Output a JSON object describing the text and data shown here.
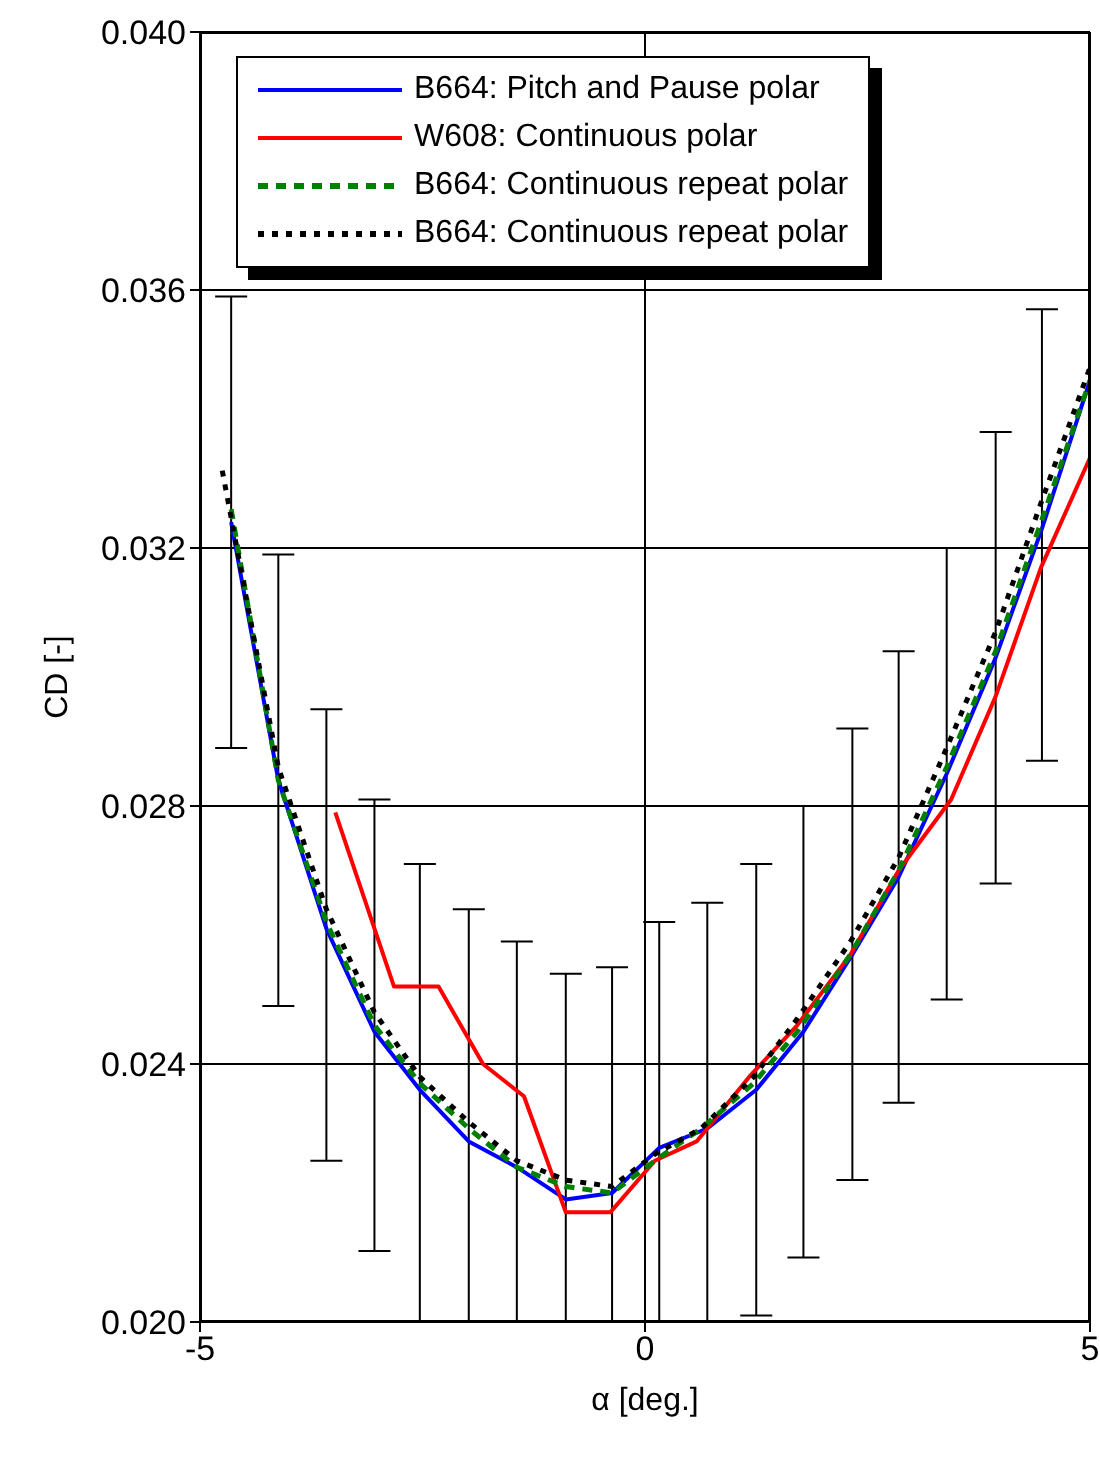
{
  "chart_data": {
    "type": "line",
    "xlabel": "α [deg.]",
    "ylabel": "CD [-]",
    "xlim": [
      -5,
      5
    ],
    "xticks": [
      -5,
      0,
      5
    ],
    "ylim": [
      0.02,
      0.04
    ],
    "yticks": [
      {
        "value": 0.02,
        "label": "0.020"
      },
      {
        "value": 0.024,
        "label": "0.024"
      },
      {
        "value": 0.028,
        "label": "0.028"
      },
      {
        "value": 0.032,
        "label": "0.032"
      },
      {
        "value": 0.036,
        "label": "0.036"
      },
      {
        "value": 0.04,
        "label": "0.040"
      }
    ],
    "grid": true,
    "legend": "top",
    "marker": "none",
    "series": [
      {
        "name": "B664:  Pitch and Pause polar",
        "color": "#0000ff",
        "line_style": "solid",
        "x": [
          -4.65,
          -4.12,
          -3.58,
          -3.04,
          -2.53,
          -1.98,
          -1.44,
          -0.89,
          -0.37,
          0.16,
          0.7,
          1.25,
          1.78,
          2.33,
          2.85,
          3.39,
          3.94,
          4.46,
          5.0
        ],
        "values": [
          0.0324,
          0.0284,
          0.0261,
          0.0245,
          0.0236,
          0.0228,
          0.0224,
          0.0219,
          0.022,
          0.0227,
          0.023,
          0.0236,
          0.0245,
          0.0257,
          0.0269,
          0.0285,
          0.0303,
          0.0323,
          0.0346
        ],
        "errors": [
          [
            0.0289,
            0.0359
          ],
          [
            0.0249,
            0.0319
          ],
          [
            0.0225,
            0.0295
          ],
          [
            0.0211,
            0.0281
          ],
          [
            0.02,
            0.0271
          ],
          [
            0.02,
            0.0264
          ],
          [
            0.02,
            0.0259
          ],
          [
            0.02,
            0.0254
          ],
          [
            0.02,
            0.0255
          ],
          [
            0.02,
            0.0262
          ],
          [
            0.02,
            0.0265
          ],
          [
            0.0201,
            0.0271
          ],
          [
            0.021,
            0.028
          ],
          [
            0.0222,
            0.0292
          ],
          [
            0.0234,
            0.0304
          ],
          [
            0.025,
            0.032
          ],
          [
            0.0268,
            0.0338
          ],
          [
            0.0287,
            0.0357
          ],
          null
        ]
      },
      {
        "name": "W608: Continuous polar",
        "color": "#ff0000",
        "line_style": "solid",
        "x": [
          -3.48,
          -2.82,
          -2.32,
          -1.82,
          -1.36,
          -0.89,
          -0.39,
          0.11,
          0.58,
          1.17,
          1.71,
          2.31,
          2.85,
          3.44,
          3.94,
          4.45,
          5.0
        ],
        "values": [
          0.0279,
          0.0252,
          0.0252,
          0.024,
          0.0235,
          0.0217,
          0.0217,
          0.0225,
          0.0228,
          0.0238,
          0.0246,
          0.0257,
          0.027,
          0.0281,
          0.0297,
          0.0317,
          0.0334
        ]
      },
      {
        "name": "B664:  Continuous repeat polar",
        "color": "#008000",
        "line_style": "dashed",
        "x": [
          -4.65,
          -4.12,
          -3.58,
          -3.04,
          -2.53,
          -1.98,
          -1.44,
          -0.89,
          -0.37,
          0.11,
          0.63,
          1.22,
          1.71,
          2.31,
          2.85,
          3.39,
          3.94,
          4.45,
          5.0
        ],
        "values": [
          0.0326,
          0.0284,
          0.0262,
          0.0246,
          0.0237,
          0.023,
          0.0224,
          0.0221,
          0.022,
          0.0225,
          0.023,
          0.0237,
          0.0245,
          0.0257,
          0.027,
          0.0286,
          0.0304,
          0.0324,
          0.0346
        ]
      },
      {
        "name": "B664:  Continuous repeat polar",
        "color": "#000000",
        "line_style": "dotted",
        "x": [
          -4.75,
          -4.12,
          -3.58,
          -3.04,
          -2.53,
          -1.98,
          -1.44,
          -0.89,
          -0.37,
          0.11,
          0.63,
          1.22,
          1.71,
          2.31,
          2.85,
          3.39,
          3.94,
          4.45,
          5.0
        ],
        "values": [
          0.0332,
          0.0286,
          0.0264,
          0.0248,
          0.0238,
          0.0231,
          0.0225,
          0.0222,
          0.0221,
          0.0226,
          0.023,
          0.0238,
          0.0247,
          0.0259,
          0.0272,
          0.0289,
          0.0307,
          0.0327,
          0.0348
        ]
      }
    ]
  }
}
